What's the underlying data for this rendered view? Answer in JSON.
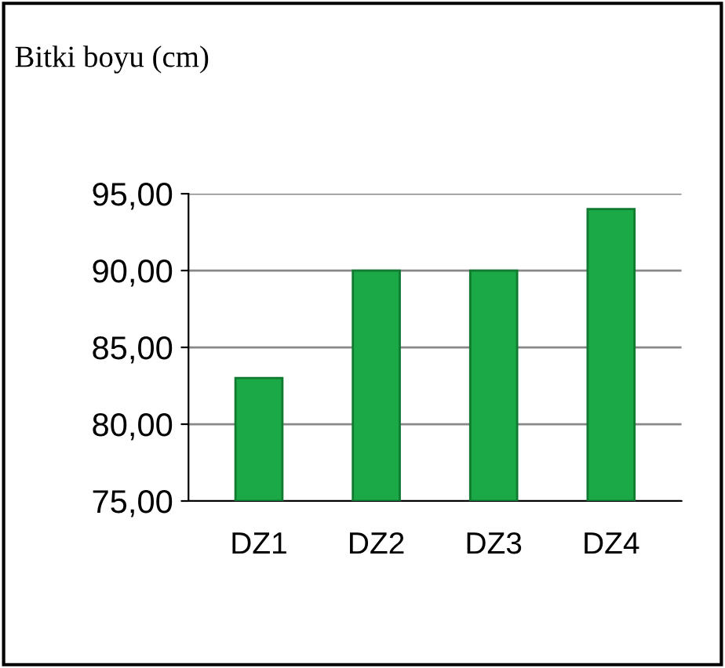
{
  "chart_data": {
    "type": "bar",
    "title": "Bitki boyu (cm)",
    "categories": [
      "DZ1",
      "DZ2",
      "DZ3",
      "DZ4"
    ],
    "values": [
      83,
      90,
      90,
      94
    ],
    "color": "#1ba846",
    "ylim": [
      75,
      95
    ],
    "yticks": [
      {
        "value": 75,
        "label": "75,00"
      },
      {
        "value": 80,
        "label": "80,00"
      },
      {
        "value": 85,
        "label": "85,00"
      },
      {
        "value": 90,
        "label": "90,00"
      },
      {
        "value": 95,
        "label": "95,00"
      }
    ],
    "grid": "y"
  }
}
